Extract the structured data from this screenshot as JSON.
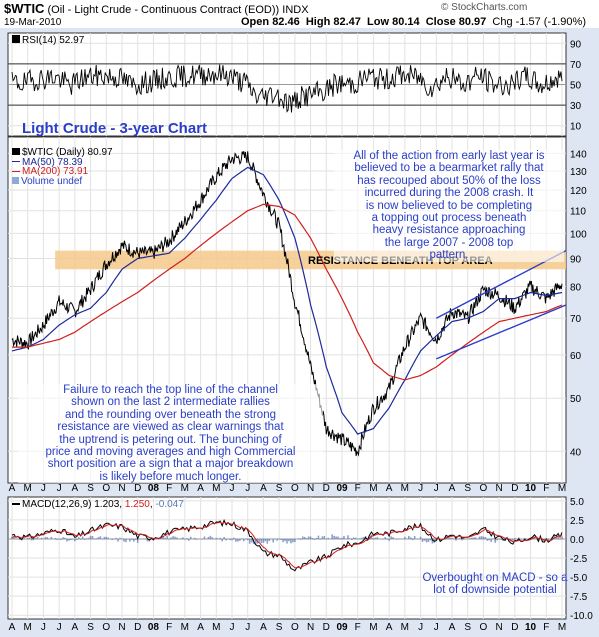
{
  "header": {
    "symbol": "$WTIC",
    "description": "(Oil - Light Crude - Continuous Contract (EOD))",
    "exchange": "INDX",
    "date": "19-Mar-2010",
    "open_label": "Open",
    "open": "82.46",
    "high_label": "High",
    "high": "82.47",
    "low_label": "Low",
    "low": "80.14",
    "close_label": "Close",
    "close": "80.97",
    "chg_label": "Chg",
    "chg": "-1.57 (-1.90%)",
    "source": "© StockCharts.com"
  },
  "colors": {
    "panel_bg": "#ffffff",
    "frame_bg": "#dde6f2",
    "price_line": "#000000",
    "ma50": "#1c2a9a",
    "ma200": "#d0201f",
    "resistance_band": "#f5c98a",
    "channel": "#2a3ec8",
    "annotation_text": "#2a3ec8",
    "title_text": "#2a3ec8",
    "macd_signal": "#d0201f",
    "macd_hist": "#5a78b8"
  },
  "rsi_panel": {
    "legend": "RSI(14) 52.97",
    "ticks": [
      "90",
      "70",
      "50",
      "30",
      "10"
    ]
  },
  "price_panel": {
    "title": "Light Crude - 3-year Chart",
    "legend_main": "$WTIC (Daily) 80.97",
    "legend_ma50": "MA(50) 78.39",
    "legend_ma200": "MA(200) 73.91",
    "legend_volume": "Volume undef",
    "ticks": [
      "140",
      "130",
      "120",
      "110",
      "100",
      "90",
      "80",
      "70",
      "60",
      "50",
      "40"
    ],
    "band_label": "RESISTANCE BENEATH TOP AREA",
    "annotation_top": [
      "All of the action from early last year is",
      "believed to be a bearmarket rally that",
      "has recouped about 50% of the loss",
      "incurred during the 2008 crash. It",
      "is now believed to be completing",
      "a topping out process beneath",
      "heavy resistance approaching",
      "the large 2007 - 2008 top",
      "pattern."
    ],
    "annotation_bottom": [
      "Failure to reach the top line of the channel",
      "shown on the last 2 intermediate rallies",
      "and the rounding over beneath the strong",
      "resistance are viewed as clear warnings that",
      "the uptrend is petering out. The bunching of",
      "price and moving averages and high Commercial",
      "short position are a sign that a major breakdown",
      "is likely before much longer."
    ]
  },
  "macd_panel": {
    "legend_name": "MACD(12,26,9)",
    "macd_value": "1.203",
    "signal_value": "1.250",
    "hist_value": "-0.047",
    "ticks": [
      "5.0",
      "2.5",
      "0.0",
      "-2.5",
      "-5.0",
      "-7.5",
      "-10.0"
    ],
    "annotation": [
      "Overbought on MACD - so a",
      "lot of downside potential"
    ]
  },
  "x_axis_labels": [
    "A",
    "M",
    "J",
    "J",
    "A",
    "S",
    "O",
    "N",
    "D",
    "08",
    "F",
    "M",
    "A",
    "M",
    "J",
    "J",
    "A",
    "S",
    "O",
    "N",
    "D",
    "09",
    "F",
    "M",
    "A",
    "M",
    "J",
    "J",
    "A",
    "S",
    "O",
    "N",
    "D",
    "10",
    "F",
    "M"
  ],
  "chart_data": {
    "type": "line",
    "title": "Light Crude - 3-year Chart",
    "xlabel": "",
    "ylabel": "",
    "x_months": [
      "Apr 2007",
      "May 2007",
      "Jun 2007",
      "Jul 2007",
      "Aug 2007",
      "Sep 2007",
      "Oct 2007",
      "Nov 2007",
      "Dec 2007",
      "Jan 2008",
      "Feb 2008",
      "Mar 2008",
      "Apr 2008",
      "May 2008",
      "Jun 2008",
      "Jul 2008",
      "Aug 2008",
      "Sep 2008",
      "Oct 2008",
      "Nov 2008",
      "Dec 2008",
      "Jan 2009",
      "Feb 2009",
      "Mar 2009",
      "Apr 2009",
      "May 2009",
      "Jun 2009",
      "Jul 2009",
      "Aug 2009",
      "Sep 2009",
      "Oct 2009",
      "Nov 2009",
      "Dec 2009",
      "Jan 2010",
      "Feb 2010",
      "Mar 2010"
    ],
    "price_ylim": [
      35,
      150
    ],
    "price_log_scale": true,
    "series": [
      {
        "name": "$WTIC (Daily) 80.97",
        "values": [
          64,
          63,
          68,
          75,
          72,
          79,
          88,
          95,
          92,
          92,
          97,
          105,
          115,
          127,
          137,
          138,
          118,
          103,
          75,
          57,
          44,
          42,
          40,
          48,
          52,
          62,
          70,
          64,
          72,
          70,
          79,
          77,
          73,
          80,
          76,
          81
        ]
      },
      {
        "name": "MA(50) 78.39",
        "values": [
          61,
          62,
          64,
          68,
          71,
          73,
          78,
          86,
          90,
          91,
          92,
          98,
          106,
          115,
          126,
          132,
          128,
          115,
          98,
          74,
          57,
          47,
          43,
          44,
          48,
          54,
          61,
          65,
          69,
          70,
          72,
          76,
          76,
          78,
          77,
          78
        ]
      },
      {
        "name": "MA(200) 73.91",
        "values": [
          62,
          62,
          63,
          64,
          66,
          69,
          72,
          75,
          78,
          82,
          86,
          90,
          95,
          100,
          105,
          110,
          113,
          112,
          108,
          98,
          86,
          76,
          66,
          58,
          55,
          54,
          55,
          57,
          60,
          63,
          66,
          69,
          70,
          71,
          72,
          74
        ]
      }
    ],
    "rsi": {
      "name": "RSI(14) 52.97",
      "ylim": [
        0,
        100
      ],
      "reference_lines": [
        30,
        50,
        70
      ]
    },
    "macd": {
      "name": "MACD(12,26,9)",
      "ylim": [
        -10.5,
        5.5
      ],
      "last_macd": 1.203,
      "last_signal": 1.25,
      "last_histogram": -0.047
    },
    "resistance_band": {
      "label": "RESISTANCE BENEATH TOP AREA",
      "low": 86,
      "high": 93
    },
    "grid": true,
    "legend_placement": "top-left"
  }
}
